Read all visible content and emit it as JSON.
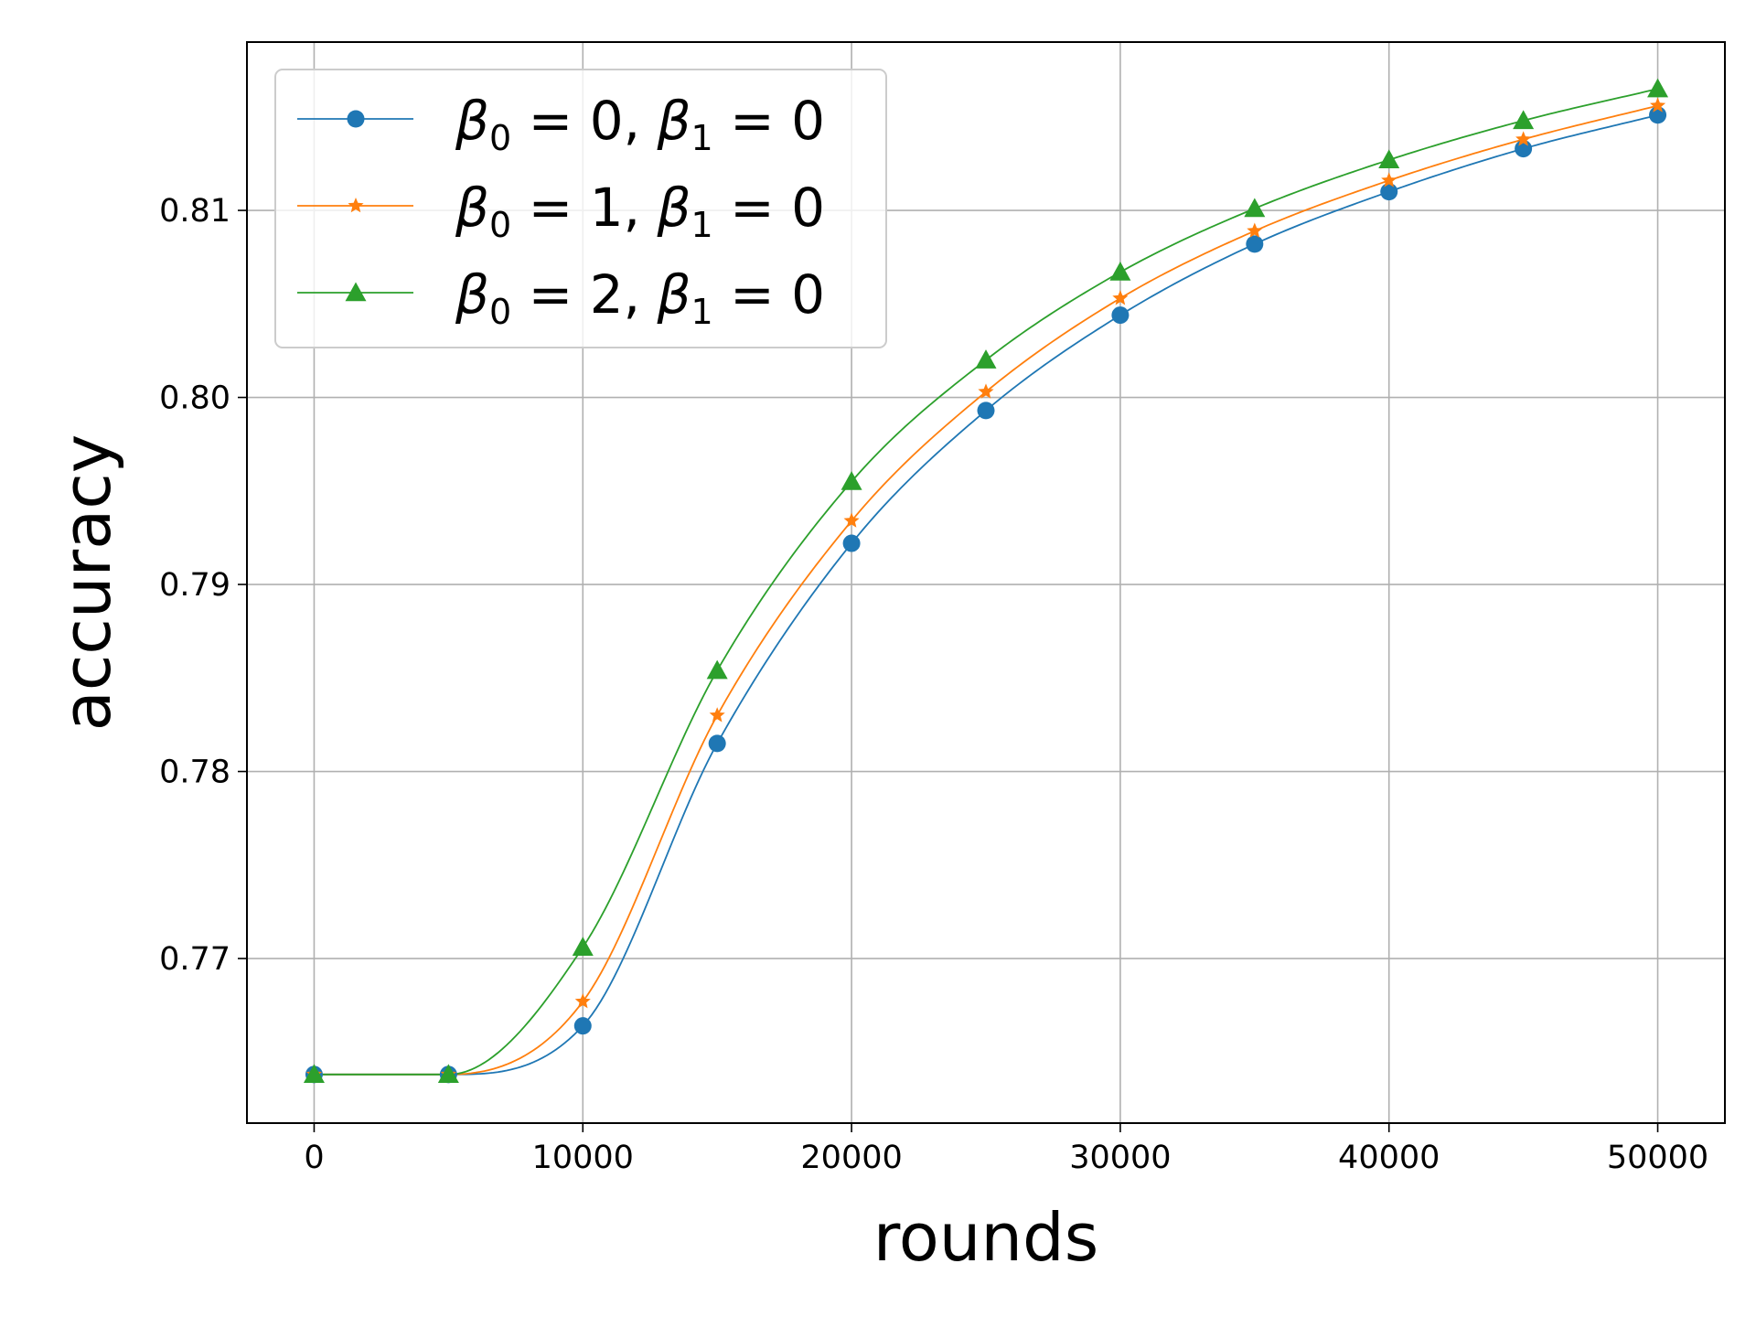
{
  "chart_data": {
    "type": "line",
    "xlabel": "rounds",
    "ylabel": "accuracy",
    "xlim": [
      -2500,
      52500
    ],
    "ylim": [
      0.7612,
      0.819
    ],
    "x_ticks": [
      0,
      10000,
      20000,
      30000,
      40000,
      50000
    ],
    "x_tick_labels": [
      "0",
      "10000",
      "20000",
      "30000",
      "40000",
      "50000"
    ],
    "y_ticks": [
      0.77,
      0.78,
      0.79,
      0.8,
      0.81
    ],
    "y_tick_labels": [
      "0.77",
      "0.78",
      "0.79",
      "0.80",
      "0.81"
    ],
    "grid": true,
    "legend_position": "top-left",
    "x": [
      0,
      5000,
      10000,
      15000,
      20000,
      25000,
      30000,
      35000,
      40000,
      45000,
      50000
    ],
    "series": [
      {
        "name": "β0 = 0, β1 = 0",
        "legend": {
          "beta0_value": "0",
          "beta1_value": "0"
        },
        "color": "#1f77b4",
        "marker": "circle",
        "values": [
          0.7638,
          0.7638,
          0.7664,
          0.7815,
          0.7922,
          0.7993,
          0.8044,
          0.8082,
          0.811,
          0.8133,
          0.8151
        ]
      },
      {
        "name": "β0 = 1, β1 = 0",
        "legend": {
          "beta0_value": "1",
          "beta1_value": "0"
        },
        "color": "#ff7f0e",
        "marker": "star",
        "values": [
          0.7638,
          0.7638,
          0.7677,
          0.783,
          0.7934,
          0.8003,
          0.8053,
          0.8089,
          0.8116,
          0.8138,
          0.8156
        ]
      },
      {
        "name": "β0 = 2, β1 = 0",
        "legend": {
          "beta0_value": "2",
          "beta1_value": "0"
        },
        "color": "#2ca02c",
        "marker": "triangle",
        "values": [
          0.7638,
          0.7638,
          0.7706,
          0.7854,
          0.7955,
          0.802,
          0.8067,
          0.8101,
          0.8127,
          0.8148,
          0.8165
        ]
      }
    ]
  }
}
